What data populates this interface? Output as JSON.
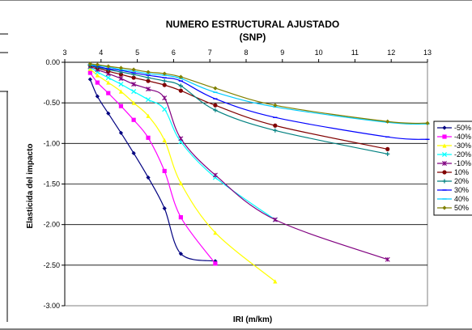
{
  "chart_data": {
    "type": "line",
    "title": "NUMERO ESTRUCTURAL AJUSTADO",
    "subtitle": "(SNP)",
    "xlabel": "IRI (m/km)",
    "ylabel": "Elasticida del impacto",
    "xlim": [
      3,
      13
    ],
    "ylim": [
      -3.0,
      0.0
    ],
    "x_ticks": [
      "3",
      "4",
      "5",
      "6",
      "7",
      "8",
      "9",
      "10",
      "11",
      "12",
      "13"
    ],
    "y_ticks": [
      "0.00",
      "-0.50",
      "-1.00",
      "-1.50",
      "-2.00",
      "-2.50",
      "-3.00"
    ],
    "x_axis_position": "top",
    "grid": "horizontal",
    "legend_position": "right",
    "series": [
      {
        "name": "-50%",
        "color": "#000080",
        "marker": "diamond",
        "points": [
          [
            3.7,
            -0.21
          ],
          [
            3.9,
            -0.42
          ],
          [
            4.2,
            -0.63
          ],
          [
            4.55,
            -0.87
          ],
          [
            4.9,
            -1.12
          ],
          [
            5.3,
            -1.42
          ],
          [
            5.75,
            -1.8
          ],
          [
            6.2,
            -2.36
          ],
          [
            7.15,
            -2.45
          ]
        ]
      },
      {
        "name": "-40%",
        "color": "#ff00ff",
        "marker": "square",
        "points": [
          [
            3.7,
            -0.13
          ],
          [
            3.9,
            -0.25
          ],
          [
            4.2,
            -0.38
          ],
          [
            4.55,
            -0.54
          ],
          [
            4.9,
            -0.71
          ],
          [
            5.3,
            -0.93
          ],
          [
            5.75,
            -1.34
          ],
          [
            6.2,
            -1.91
          ],
          [
            7.15,
            -2.48
          ]
        ]
      },
      {
        "name": "-30%",
        "color": "#ffff00",
        "marker": "triangle",
        "points": [
          [
            3.7,
            -0.08
          ],
          [
            3.9,
            -0.16
          ],
          [
            4.2,
            -0.25
          ],
          [
            4.55,
            -0.36
          ],
          [
            4.9,
            -0.5
          ],
          [
            5.3,
            -0.66
          ],
          [
            5.75,
            -0.96
          ],
          [
            6.2,
            -1.49
          ],
          [
            7.15,
            -2.1
          ],
          [
            8.8,
            -2.7
          ]
        ]
      },
      {
        "name": "-20%",
        "color": "#00ffff",
        "marker": "x",
        "points": [
          [
            3.7,
            -0.06
          ],
          [
            3.9,
            -0.12
          ],
          [
            4.2,
            -0.19
          ],
          [
            4.55,
            -0.27
          ],
          [
            4.9,
            -0.36
          ],
          [
            5.3,
            -0.46
          ],
          [
            5.75,
            -0.58
          ],
          [
            6.2,
            -0.98
          ],
          [
            7.15,
            -1.42
          ],
          [
            8.8,
            -1.94
          ]
        ]
      },
      {
        "name": "-10%",
        "color": "#800080",
        "marker": "star",
        "points": [
          [
            3.7,
            -0.05
          ],
          [
            3.9,
            -0.09
          ],
          [
            4.2,
            -0.14
          ],
          [
            4.55,
            -0.2
          ],
          [
            4.9,
            -0.27
          ],
          [
            5.3,
            -0.33
          ],
          [
            5.75,
            -0.44
          ],
          [
            6.2,
            -0.94
          ],
          [
            7.15,
            -1.39
          ],
          [
            8.8,
            -1.94
          ],
          [
            11.9,
            -2.43
          ]
        ]
      },
      {
        "name": "10%",
        "color": "#800000",
        "marker": "circle",
        "points": [
          [
            3.7,
            -0.04
          ],
          [
            3.9,
            -0.07
          ],
          [
            4.2,
            -0.11
          ],
          [
            4.55,
            -0.15
          ],
          [
            4.9,
            -0.19
          ],
          [
            5.3,
            -0.23
          ],
          [
            5.75,
            -0.28
          ],
          [
            6.2,
            -0.35
          ],
          [
            7.15,
            -0.53
          ],
          [
            8.8,
            -0.78
          ],
          [
            11.9,
            -1.07
          ]
        ]
      },
      {
        "name": "20%",
        "color": "#008080",
        "marker": "plus",
        "points": [
          [
            3.7,
            -0.04
          ],
          [
            3.9,
            -0.06
          ],
          [
            4.2,
            -0.09
          ],
          [
            4.55,
            -0.12
          ],
          [
            4.9,
            -0.15
          ],
          [
            5.3,
            -0.19
          ],
          [
            5.75,
            -0.23
          ],
          [
            6.2,
            -0.29
          ],
          [
            7.15,
            -0.59
          ],
          [
            8.8,
            -0.84
          ],
          [
            11.9,
            -1.13
          ]
        ]
      },
      {
        "name": "30%",
        "color": "#0000ff",
        "marker": "dash",
        "points": [
          [
            3.7,
            -0.03
          ],
          [
            3.9,
            -0.05
          ],
          [
            4.2,
            -0.08
          ],
          [
            4.55,
            -0.1
          ],
          [
            4.9,
            -0.13
          ],
          [
            5.3,
            -0.16
          ],
          [
            5.75,
            -0.19
          ],
          [
            6.2,
            -0.23
          ],
          [
            7.15,
            -0.45
          ],
          [
            8.8,
            -0.68
          ],
          [
            11.9,
            -0.92
          ],
          [
            13.0,
            -0.95
          ]
        ]
      },
      {
        "name": "40%",
        "color": "#00ccff",
        "marker": "dash",
        "points": [
          [
            3.7,
            -0.03
          ],
          [
            3.9,
            -0.04
          ],
          [
            4.2,
            -0.06
          ],
          [
            4.55,
            -0.09
          ],
          [
            4.9,
            -0.11
          ],
          [
            5.3,
            -0.14
          ],
          [
            5.75,
            -0.16
          ],
          [
            6.2,
            -0.2
          ],
          [
            7.15,
            -0.37
          ],
          [
            8.8,
            -0.55
          ],
          [
            11.9,
            -0.74
          ],
          [
            13.0,
            -0.76
          ]
        ]
      },
      {
        "name": "50%",
        "color": "#808000",
        "marker": "diamond",
        "points": [
          [
            3.7,
            -0.02
          ],
          [
            3.9,
            -0.03
          ],
          [
            4.2,
            -0.05
          ],
          [
            4.55,
            -0.07
          ],
          [
            4.9,
            -0.09
          ],
          [
            5.3,
            -0.12
          ],
          [
            5.75,
            -0.14
          ],
          [
            6.2,
            -0.18
          ],
          [
            7.15,
            -0.32
          ],
          [
            8.8,
            -0.53
          ],
          [
            11.9,
            -0.73
          ],
          [
            13.0,
            -0.75
          ]
        ]
      }
    ]
  }
}
